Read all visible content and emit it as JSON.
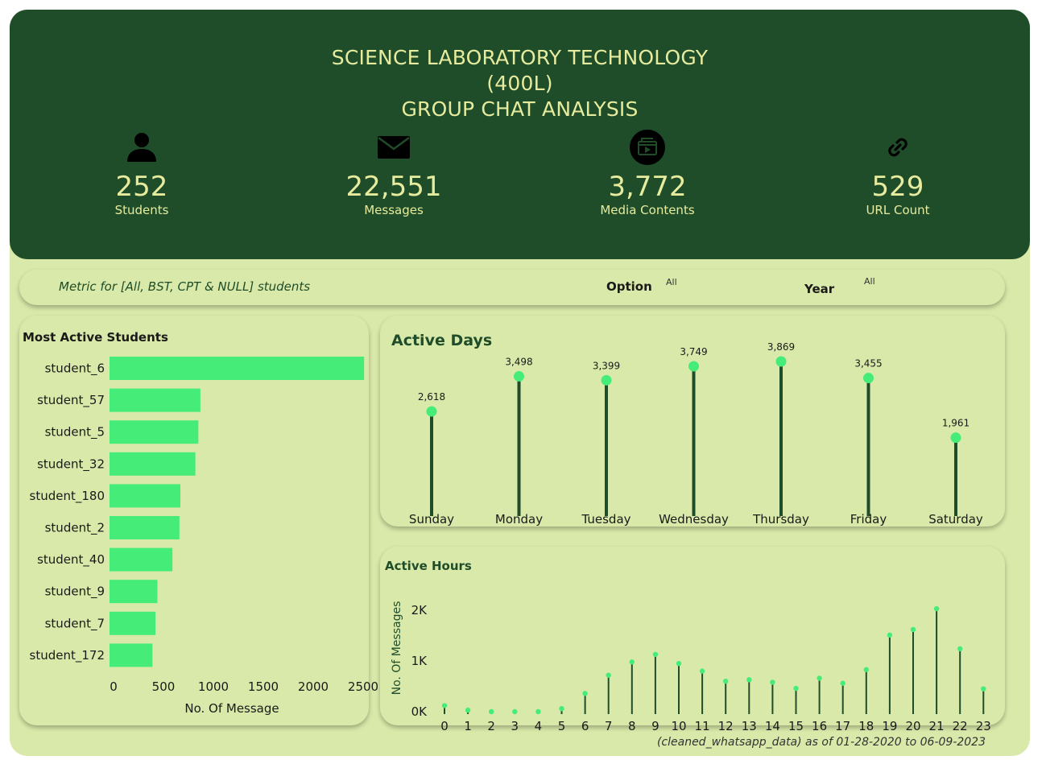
{
  "header": {
    "title_lines": [
      "SCIENCE LABORATORY TECHNOLOGY",
      "(400L)",
      "GROUP CHAT ANALYSIS"
    ]
  },
  "kpis": [
    {
      "icon": "person-icon",
      "value": "252",
      "label": "Students"
    },
    {
      "icon": "envelope-icon",
      "value": "22,551",
      "label": "Messages"
    },
    {
      "icon": "media-icon",
      "value": "3,772",
      "label": "Media Contents"
    },
    {
      "icon": "link-icon",
      "value": "529",
      "label": "URL Count"
    }
  ],
  "filters": {
    "metric_text": "Metric for [All, BST, CPT & NULL] students",
    "option_label": "Option",
    "option_value": "All",
    "year_label": "Year",
    "year_value": "All"
  },
  "footer": "(cleaned_whatsapp_data) as of 01-28-2020 to 06-09-2023",
  "colors": {
    "header_bg": "#1f4d2a",
    "page_bg": "#d9e9a9",
    "accent_green": "#46ec78",
    "stem_green": "#1f4d2a",
    "title_text": "#e6eb9e"
  },
  "chart_data": [
    {
      "type": "bar",
      "orientation": "horizontal",
      "title": "Most Active Students",
      "categories": [
        "student_6",
        "student_57",
        "student_5",
        "student_32",
        "student_180",
        "student_2",
        "student_40",
        "student_9",
        "student_7",
        "student_172"
      ],
      "values": [
        2550,
        910,
        890,
        860,
        710,
        700,
        630,
        480,
        460,
        430
      ],
      "xlabel": "No. Of Message",
      "ylabel": "",
      "xlim": [
        0,
        2500
      ],
      "xticks": [
        "0",
        "500",
        "1000",
        "1500",
        "2000",
        "2500"
      ],
      "grid": false
    },
    {
      "type": "lollipop",
      "title": "Active Days",
      "categories": [
        "Sunday",
        "Monday",
        "Tuesday",
        "Wednesday",
        "Thursday",
        "Friday",
        "Saturday"
      ],
      "values": [
        2618,
        3498,
        3399,
        3749,
        3869,
        3455,
        1961
      ],
      "value_labels": [
        "2,618",
        "3,498",
        "3,399",
        "3,749",
        "3,869",
        "3,455",
        "1,961"
      ],
      "ylim": [
        0,
        3869
      ],
      "grid": false
    },
    {
      "type": "lollipop",
      "title": "Active Hours",
      "categories": [
        "0",
        "1",
        "2",
        "3",
        "4",
        "5",
        "6",
        "7",
        "8",
        "9",
        "10",
        "11",
        "12",
        "13",
        "14",
        "15",
        "16",
        "17",
        "18",
        "19",
        "20",
        "21",
        "22",
        "23"
      ],
      "values": [
        120,
        30,
        0,
        0,
        0,
        60,
        360,
        720,
        980,
        1130,
        950,
        800,
        600,
        630,
        580,
        460,
        660,
        560,
        830,
        1510,
        1620,
        2030,
        1240,
        450
      ],
      "ylabel": "No. Of Messages",
      "yticks": [
        "0K",
        "1K",
        "2K"
      ],
      "ylim": [
        0,
        2030
      ],
      "grid": false
    }
  ]
}
